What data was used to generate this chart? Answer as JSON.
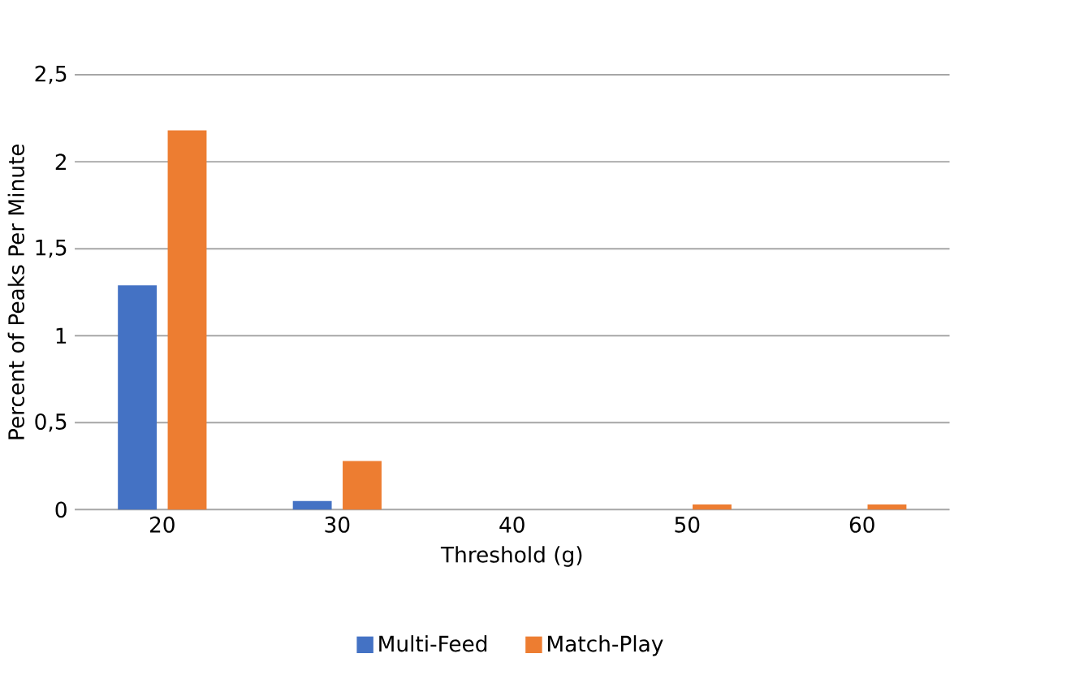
{
  "chart_data": {
    "type": "bar",
    "xlabel": "Threshold (g)",
    "ylabel": "Percent of Peaks Per Minute",
    "categories": [
      "20",
      "30",
      "40",
      "50",
      "60"
    ],
    "series": [
      {
        "name": "Multi-Feed",
        "color": "#4472c4",
        "values": [
          1.29,
          0.05,
          0,
          0,
          0
        ]
      },
      {
        "name": "Match-Play",
        "color": "#ed7d31",
        "values": [
          2.18,
          0.28,
          0,
          0.03,
          0.03
        ]
      }
    ],
    "ylim": [
      0,
      2.5
    ],
    "yticks": [
      0,
      {
        "value": 0.5,
        "label": "0,5"
      },
      1,
      {
        "value": 1.5,
        "label": "1,5"
      },
      2,
      {
        "value": 2.5,
        "label": "2,5"
      }
    ],
    "grid": "y",
    "legend": "bottom"
  }
}
